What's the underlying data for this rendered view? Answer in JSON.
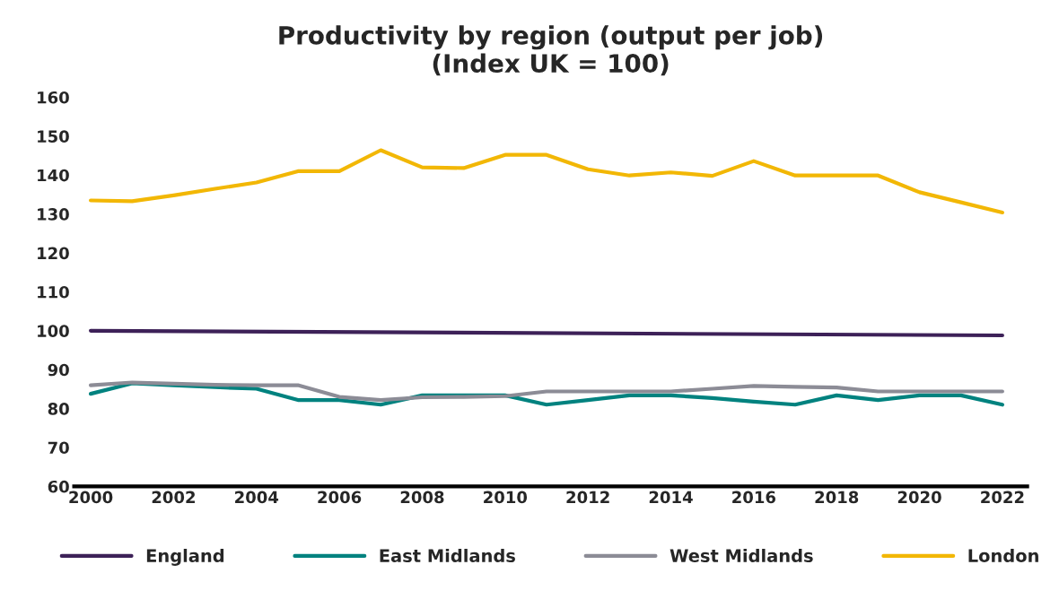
{
  "chart_data": {
    "type": "line",
    "title": "Productivity by region (output per job)\n(Index UK = 100)",
    "x": [
      2000,
      2001,
      2002,
      2003,
      2004,
      2005,
      2006,
      2007,
      2008,
      2009,
      2010,
      2011,
      2012,
      2013,
      2014,
      2015,
      2016,
      2017,
      2018,
      2019,
      2020,
      2021,
      2022
    ],
    "series": [
      {
        "name": "England",
        "color": "#3d2158",
        "x": [
          2000,
          2022
        ],
        "values": [
          100,
          98.8
        ]
      },
      {
        "name": "East Midlands",
        "color": "#00827f",
        "values": [
          83.8,
          86.5,
          86,
          85.5,
          85.1,
          82.2,
          82.2,
          81,
          83.4,
          83.4,
          83.4,
          81,
          82.2,
          83.4,
          83.4,
          82.7,
          81.8,
          81,
          83.4,
          82.2,
          83.4,
          83.4,
          81
        ]
      },
      {
        "name": "West Midlands",
        "color": "#8c8c96",
        "values": [
          86,
          86.7,
          86.4,
          86.1,
          86,
          86,
          83,
          82.2,
          82.9,
          83,
          83.2,
          84.4,
          84.4,
          84.4,
          84.4,
          85.1,
          85.8,
          85.6,
          85.4,
          84.4,
          84.4,
          84.4,
          84.4
        ]
      },
      {
        "name": "London",
        "color": "#f2b705",
        "values": [
          133.5,
          133.3,
          134.8,
          136.5,
          138.1,
          141,
          141,
          146.4,
          142,
          141.8,
          145.2,
          145.2,
          141.5,
          139.9,
          140.7,
          139.8,
          143.6,
          139.9,
          139.9,
          139.9,
          135.6,
          133,
          130.4
        ]
      }
    ],
    "xlim": [
      1999.6,
      2022.6
    ],
    "xticks": [
      2000,
      2002,
      2004,
      2006,
      2008,
      2010,
      2012,
      2014,
      2016,
      2018,
      2020,
      2022
    ],
    "ylim": [
      60,
      160
    ],
    "yticks": [
      60,
      70,
      80,
      90,
      100,
      110,
      120,
      130,
      140,
      150,
      160
    ],
    "grid": false,
    "legend": "bottom",
    "marker": "none",
    "line_style": "solid"
  }
}
